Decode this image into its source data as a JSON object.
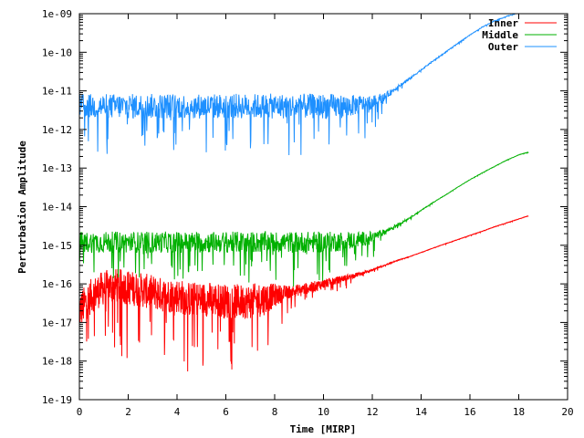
{
  "chart_data": {
    "type": "line",
    "title": "",
    "xlabel": "Time [MIRP]",
    "ylabel": "Perturbation Amplitude",
    "xlim": [
      0,
      20
    ],
    "ylim": [
      1e-19,
      1e-09
    ],
    "yscale": "log",
    "grid": false,
    "legend_position": "top-right",
    "x_ticks": [
      "0",
      "2",
      "4",
      "6",
      "8",
      "10",
      "12",
      "14",
      "16",
      "18",
      "20"
    ],
    "y_ticks": [
      "1e-19",
      "1e-18",
      "1e-17",
      "1e-16",
      "1e-15",
      "1e-14",
      "1e-13",
      "1e-12",
      "1e-11",
      "1e-10",
      "1e-09"
    ],
    "series": [
      {
        "name": "Inner",
        "color": "#ff0000",
        "x": [
          0,
          0.5,
          1,
          1.5,
          2,
          2.5,
          3,
          3.5,
          4,
          4.5,
          5,
          5.5,
          6,
          6.5,
          7,
          7.5,
          8,
          8.5,
          9,
          9.5,
          10,
          10.5,
          11,
          11.5,
          12,
          12.5,
          13,
          13.5,
          14,
          14.5,
          15,
          15.5,
          16,
          16.5,
          17,
          17.5,
          18,
          18.4
        ],
        "y": [
          2e-17,
          5e-17,
          8e-17,
          9e-17,
          8e-17,
          7e-17,
          6e-17,
          5e-17,
          5e-17,
          4e-17,
          4e-17,
          4e-17,
          3.5e-17,
          3.5e-17,
          3.5e-17,
          4e-17,
          5e-17,
          6e-17,
          7e-17,
          8e-17,
          1e-16,
          1.2e-16,
          1.5e-16,
          1.8e-16,
          2.3e-16,
          3e-16,
          4e-16,
          5e-16,
          6.5e-16,
          8.5e-16,
          1.1e-15,
          1.4e-15,
          1.8e-15,
          2.3e-15,
          3e-15,
          3.8e-15,
          4.8e-15,
          5.8e-15
        ],
        "noise_decades": [
          1.0,
          0.9,
          0.9,
          0.9,
          0.9,
          0.9,
          0.9,
          0.9,
          0.9,
          0.9,
          0.9,
          0.9,
          0.9,
          0.9,
          0.9,
          0.9,
          0.6,
          0.35,
          0.3,
          0.3,
          0.25,
          0.2,
          0.15,
          0.1,
          0.05,
          0.03,
          0.02,
          0.01,
          0.01,
          0.01,
          0.01,
          0.01,
          0.01,
          0.01,
          0.01,
          0.01,
          0.01,
          0.01
        ]
      },
      {
        "name": "Middle",
        "color": "#00b000",
        "x": [
          0,
          1,
          2,
          3,
          4,
          5,
          6,
          7,
          8,
          9,
          10,
          11,
          12,
          12.5,
          13,
          13.5,
          14,
          14.5,
          15,
          15.5,
          16,
          16.5,
          17,
          17.5,
          18,
          18.4
        ],
        "y": [
          1.2e-15,
          1.2e-15,
          1.2e-15,
          1.2e-15,
          1.2e-15,
          1.2e-15,
          1.2e-15,
          1.2e-15,
          1.2e-15,
          1.2e-15,
          1.2e-15,
          1.3e-15,
          1.6e-15,
          2.2e-15,
          3.3e-15,
          5e-15,
          8e-15,
          1.3e-14,
          2e-14,
          3.2e-14,
          5e-14,
          7.5e-14,
          1.1e-13,
          1.6e-13,
          2.2e-13,
          2.6e-13
        ],
        "noise_decades": [
          0.55,
          0.55,
          0.55,
          0.55,
          0.55,
          0.55,
          0.55,
          0.55,
          0.55,
          0.55,
          0.55,
          0.5,
          0.3,
          0.15,
          0.08,
          0.04,
          0.02,
          0.02,
          0.015,
          0.015,
          0.01,
          0.01,
          0.01,
          0.01,
          0.01,
          0.01
        ]
      },
      {
        "name": "Outer",
        "color": "#1e90ff",
        "x": [
          0,
          1,
          2,
          3,
          4,
          5,
          6,
          7,
          8,
          9,
          10,
          11,
          12,
          12.5,
          13,
          13.5,
          14,
          14.5,
          15,
          15.5,
          16,
          16.5,
          17,
          17.5,
          18,
          18.4
        ],
        "y": [
          4e-12,
          4e-12,
          4e-12,
          4e-12,
          4e-12,
          4e-12,
          4e-12,
          4e-12,
          4e-12,
          4e-12,
          4e-12,
          4e-12,
          5e-12,
          7e-12,
          1.2e-11,
          2e-11,
          3.5e-11,
          6e-11,
          1e-10,
          1.7e-10,
          2.8e-10,
          4.5e-10,
          6.5e-10,
          8.5e-10,
          1.05e-09,
          1.2e-09
        ],
        "noise_decades": [
          0.65,
          0.65,
          0.65,
          0.65,
          0.65,
          0.65,
          0.65,
          0.65,
          0.65,
          0.65,
          0.65,
          0.6,
          0.35,
          0.2,
          0.1,
          0.06,
          0.04,
          0.03,
          0.03,
          0.025,
          0.02,
          0.02,
          0.02,
          0.02,
          0.02,
          0.02
        ]
      }
    ]
  }
}
